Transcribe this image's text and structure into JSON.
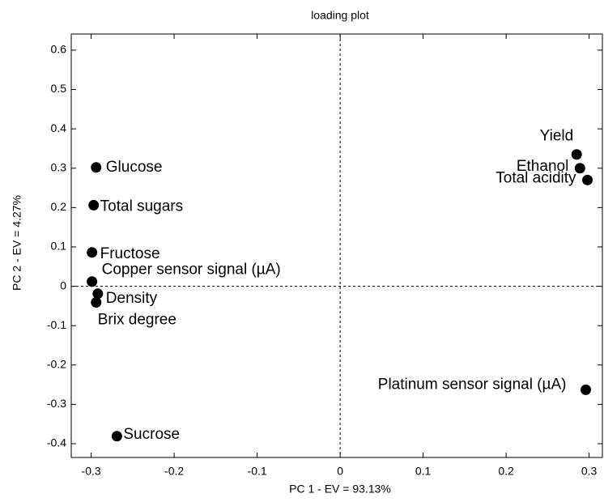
{
  "chart_data": {
    "type": "scatter",
    "title": "loading plot",
    "x_label": "PC 1 - EV = 93.13%",
    "y_label": "PC 2 - EV = 4.27%",
    "points": [
      {
        "name": "Glucose",
        "x": -0.294,
        "y": 0.302
      },
      {
        "name": "Total sugars",
        "x": -0.297,
        "y": 0.206
      },
      {
        "name": "Fructose",
        "x": -0.299,
        "y": 0.086
      },
      {
        "name": "Copper sensor signal (µA)",
        "x": -0.299,
        "y": 0.012
      },
      {
        "name": "Density",
        "x": -0.292,
        "y": -0.019
      },
      {
        "name": "Brix degree",
        "x": -0.294,
        "y": -0.041
      },
      {
        "name": "Sucrose",
        "x": -0.269,
        "y": -0.381
      },
      {
        "name": "Yield",
        "x": 0.285,
        "y": 0.335
      },
      {
        "name": "Ethanol",
        "x": 0.289,
        "y": 0.3
      },
      {
        "name": "Total acidity",
        "x": 0.298,
        "y": 0.27
      },
      {
        "name": "Platinum sensor signal (µA)",
        "x": 0.296,
        "y": -0.263
      }
    ],
    "color": "#000000",
    "xlim": [
      -0.324,
      0.316
    ],
    "ylim": [
      -0.435,
      0.641
    ],
    "xticks": [
      -0.3,
      -0.2,
      -0.1,
      0,
      0.1,
      0.2,
      0.3
    ],
    "yticks": [
      -0.4,
      -0.3,
      -0.2,
      -0.1,
      0,
      0.1,
      0.2,
      0.3,
      0.4,
      0.5,
      0.6
    ],
    "zero_lines": true
  }
}
